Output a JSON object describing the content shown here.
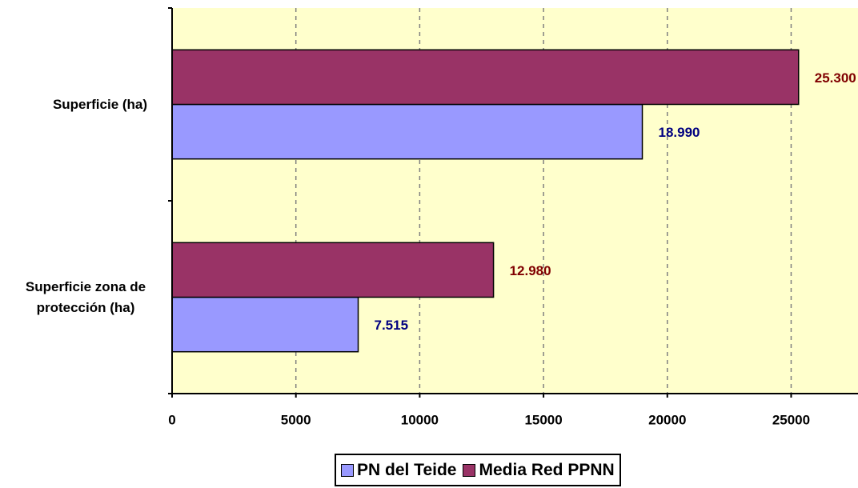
{
  "chart_data": {
    "type": "hbar",
    "categories": [
      "Superficie (ha)",
      "Superficie zona de protección (ha)"
    ],
    "series": [
      {
        "name": "PN del Teide",
        "color": "#9999ff",
        "label_color": "#000080",
        "values": [
          18990,
          7515
        ],
        "value_labels": [
          "18.990",
          "7.515"
        ]
      },
      {
        "name": "Media Red PPNN",
        "color": "#993366",
        "label_color": "#800000",
        "values": [
          25300,
          12980
        ],
        "value_labels": [
          "25.300",
          "12.980"
        ]
      }
    ],
    "xlim": [
      0,
      27700
    ],
    "xticks": [
      0,
      5000,
      10000,
      15000,
      20000,
      25000
    ],
    "grid": true,
    "background": "#ffffcc",
    "legend": "bottom"
  }
}
